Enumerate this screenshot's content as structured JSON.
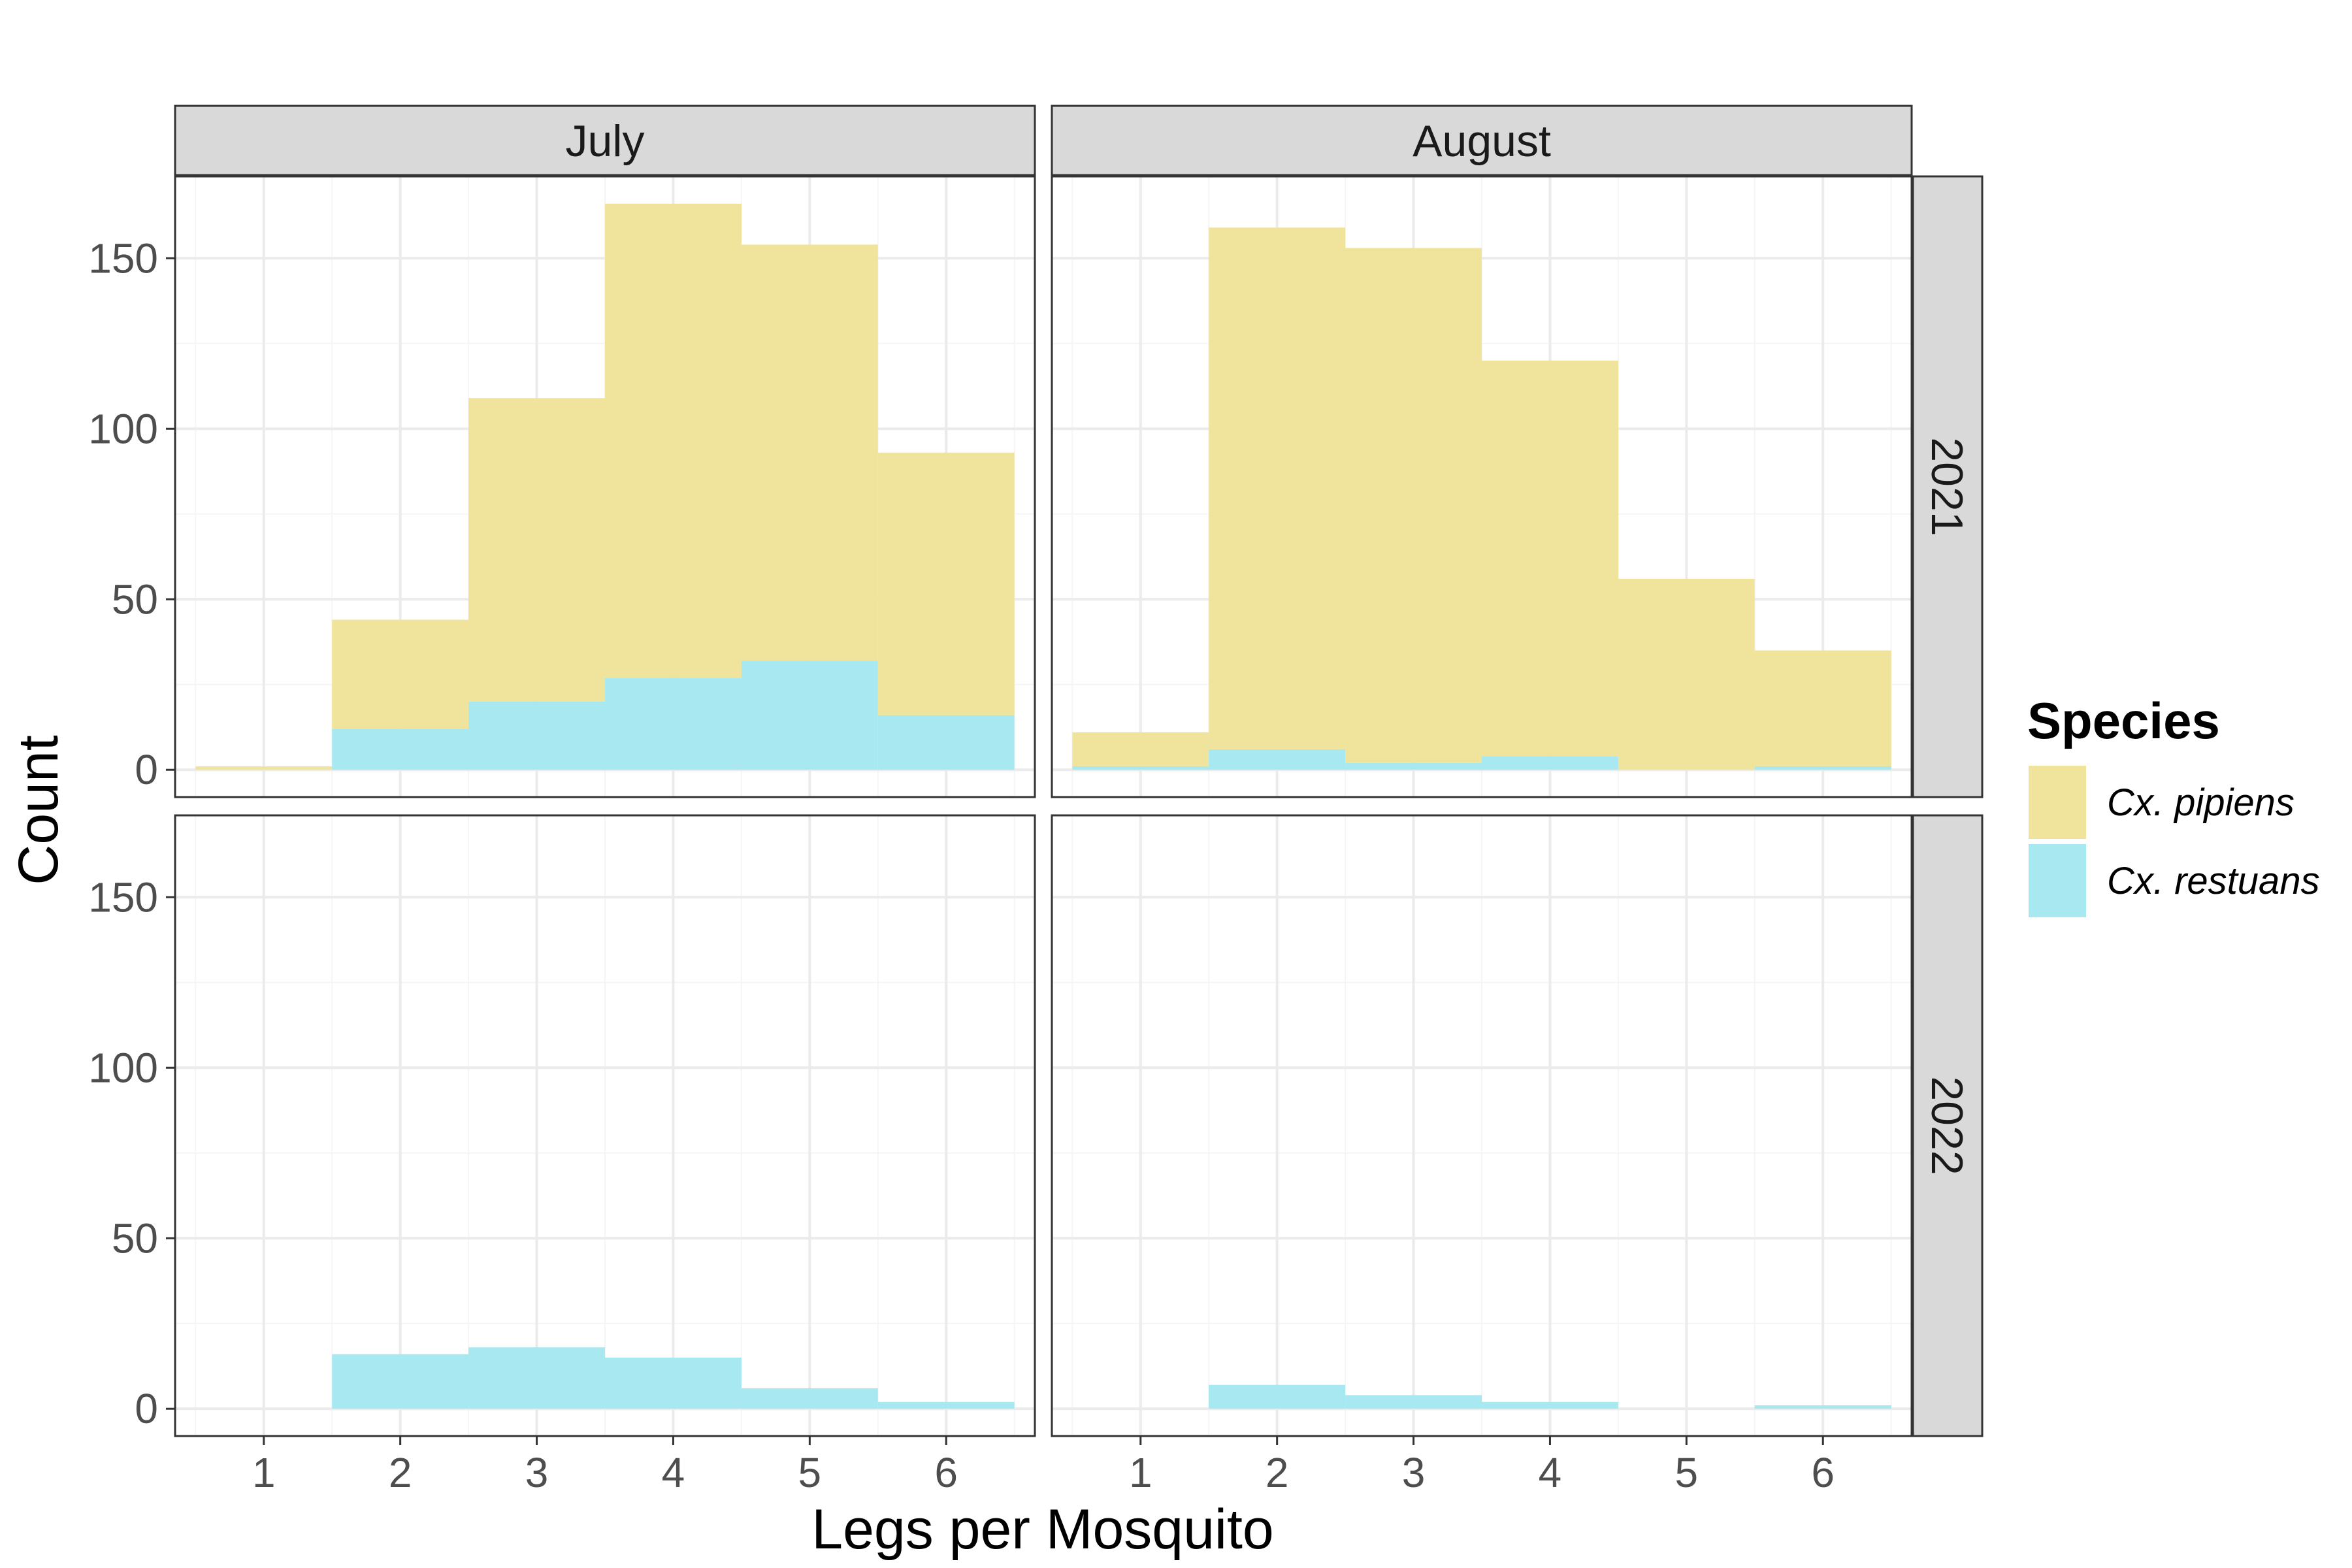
{
  "chart_data": {
    "type": "bar",
    "subtype": "faceted stacked histogram",
    "xlabel": "Legs per Mosquito",
    "ylabel": "Count",
    "x": [
      1,
      2,
      3,
      4,
      5,
      6
    ],
    "x_ticks": [
      "1",
      "2",
      "3",
      "4",
      "5",
      "6"
    ],
    "y_ticks": [
      "0",
      "50",
      "100",
      "150"
    ],
    "xlim": [
      0.35,
      6.65
    ],
    "ylim": [
      -8,
      174
    ],
    "grid": true,
    "legend_position": "right",
    "legend": {
      "title": "Species",
      "entries": [
        {
          "label": "Cx. pipiens",
          "color": "#f0e39b"
        },
        {
          "label": "Cx. restuans",
          "color": "#a8e8f0"
        }
      ]
    },
    "columns": [
      "July",
      "August"
    ],
    "rows": [
      "2021",
      "2022"
    ],
    "panels": [
      {
        "month": "July",
        "year": "2021",
        "series": [
          {
            "name": "Cx. pipiens",
            "values": [
              1,
              32,
              89,
              139,
              122,
              77
            ]
          },
          {
            "name": "Cx. restuans",
            "values": [
              0,
              12,
              20,
              27,
              32,
              16
            ]
          }
        ]
      },
      {
        "month": "August",
        "year": "2021",
        "series": [
          {
            "name": "Cx. pipiens",
            "values": [
              10,
              153,
              151,
              116,
              56,
              34
            ]
          },
          {
            "name": "Cx. restuans",
            "values": [
              1,
              6,
              2,
              4,
              0,
              1
            ]
          }
        ]
      },
      {
        "month": "July",
        "year": "2022",
        "series": [
          {
            "name": "Cx. pipiens",
            "values": [
              0,
              0,
              0,
              0,
              0,
              0
            ]
          },
          {
            "name": "Cx. restuans",
            "values": [
              0,
              16,
              18,
              15,
              6,
              2
            ]
          }
        ]
      },
      {
        "month": "August",
        "year": "2022",
        "series": [
          {
            "name": "Cx. pipiens",
            "values": [
              0,
              0,
              0,
              0,
              0,
              0
            ]
          },
          {
            "name": "Cx. restuans",
            "values": [
              0,
              7,
              4,
              2,
              0,
              1
            ]
          }
        ]
      }
    ]
  },
  "colors": {
    "strip_bg": "#d9d9d9",
    "panel_border": "#333333",
    "grid_major": "#ebebeb",
    "grid_minor": "#f5f5f5"
  }
}
